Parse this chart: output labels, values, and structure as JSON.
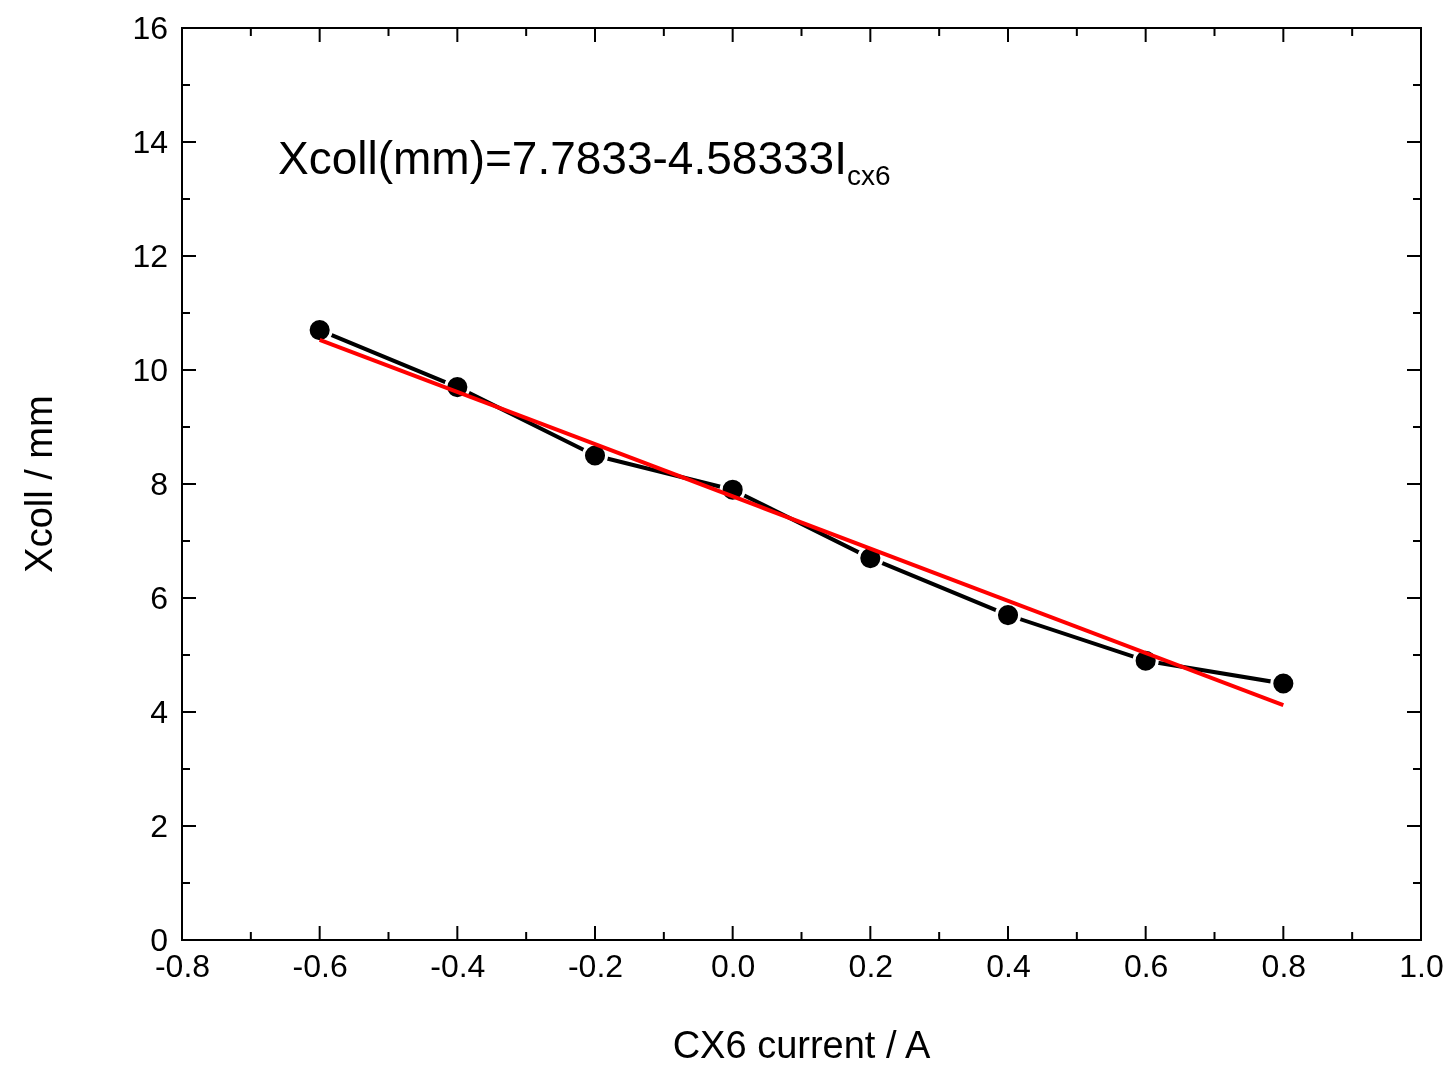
{
  "chart_data": {
    "type": "line",
    "xlabel": "CX6 current / A",
    "ylabel": "Xcoll / mm",
    "annotations": [
      "Xcoll(mm)=7.7833-4.58333I$_{cx6}$"
    ],
    "xlim": [
      -0.8,
      1.0
    ],
    "xticks": [
      -0.8,
      {
        "value": -0.7,
        "label": null
      },
      -0.6,
      {
        "value": -0.5,
        "label": null
      },
      -0.4,
      {
        "value": -0.3,
        "label": null
      },
      -0.2,
      {
        "value": -0.1,
        "label": null
      },
      {
        "value": 0,
        "label": "0.0"
      },
      {
        "value": 0.1,
        "label": null
      },
      0.2,
      {
        "value": 0.3,
        "label": null
      },
      0.4,
      {
        "value": 0.5,
        "label": null
      },
      0.6,
      {
        "value": 0.7,
        "label": null
      },
      0.8,
      {
        "value": 0.9,
        "label": null
      },
      {
        "value": 1.0,
        "label": "1.0"
      }
    ],
    "ylim": [
      0,
      16
    ],
    "yticks": [
      0,
      {
        "value": 1,
        "label": null
      },
      2,
      {
        "value": 3,
        "label": null
      },
      4,
      {
        "value": 5,
        "label": null
      },
      6,
      {
        "value": 7,
        "label": null
      },
      8,
      {
        "value": 9,
        "label": null
      },
      10,
      {
        "value": 11,
        "label": null
      },
      12,
      {
        "value": 13,
        "label": null
      },
      14,
      {
        "value": 15,
        "label": null
      },
      16
    ],
    "grid": false,
    "series": [
      {
        "marker": "circle",
        "line_style": "solid",
        "color": "#000000",
        "x": [
          -0.6,
          -0.4,
          -0.2,
          0,
          0.2,
          0.4,
          0.6,
          0.8
        ],
        "values": [
          10.7,
          9.7,
          8.5,
          7.9,
          6.7,
          5.7,
          4.9,
          4.5
        ]
      },
      {
        "type": "line",
        "marker": "none",
        "line_style": "solid",
        "color": "#ff0000",
        "x": [
          -0.6,
          0.8
        ],
        "values": [
          10.53,
          4.12
        ]
      }
    ]
  }
}
